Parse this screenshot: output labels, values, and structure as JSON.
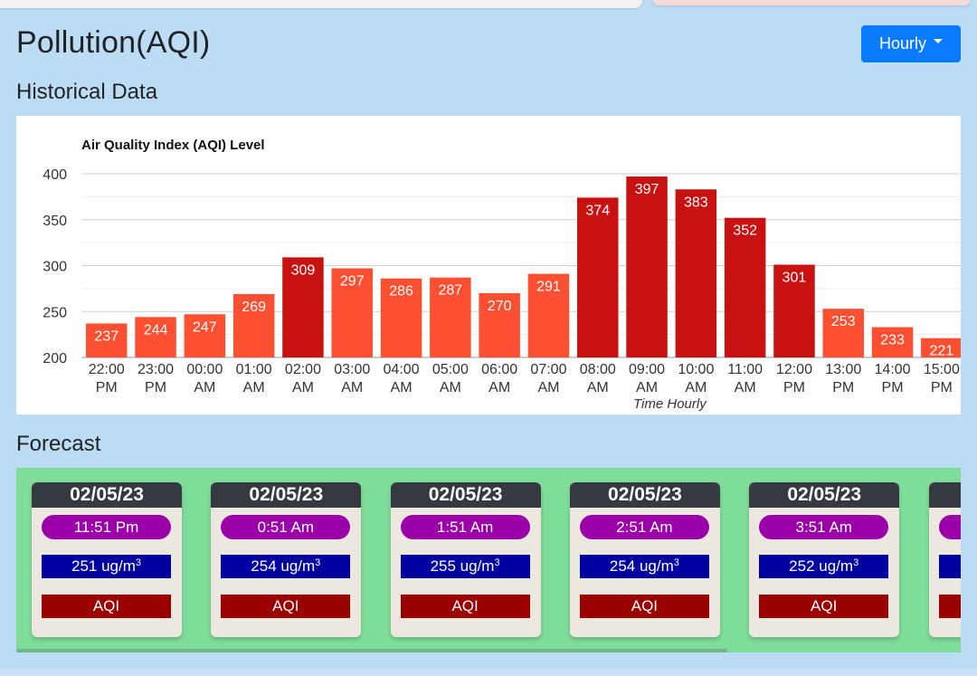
{
  "header": {
    "title": "Pollution(AQI)",
    "dropdown_label": "Hourly"
  },
  "sections": {
    "historical": "Historical Data",
    "forecast": "Forecast"
  },
  "colors": {
    "bar_normal": "#fd4f31",
    "bar_high": "#c81212",
    "button": "#0a7bff",
    "forecast_bg": "#7fdd9a",
    "time_pill": "#9b00a8",
    "pm_box": "#0000a0",
    "aqi_box": "#9a0000"
  },
  "chart_data": {
    "type": "bar",
    "title": "Air Quality Index (AQI) Level",
    "xlabel": "Time Hourly",
    "ylabel": "",
    "ylim": [
      200,
      400
    ],
    "yticks": [
      200,
      250,
      300,
      350,
      400
    ],
    "grid": true,
    "categories": [
      [
        "22:00",
        "PM"
      ],
      [
        "23:00",
        "PM"
      ],
      [
        "00:00",
        "AM"
      ],
      [
        "01:00",
        "AM"
      ],
      [
        "02:00",
        "AM"
      ],
      [
        "03:00",
        "AM"
      ],
      [
        "04:00",
        "AM"
      ],
      [
        "05:00",
        "AM"
      ],
      [
        "06:00",
        "AM"
      ],
      [
        "07:00",
        "AM"
      ],
      [
        "08:00",
        "AM"
      ],
      [
        "09:00",
        "AM"
      ],
      [
        "10:00",
        "AM"
      ],
      [
        "11:00",
        "AM"
      ],
      [
        "12:00",
        "PM"
      ],
      [
        "13:00",
        "PM"
      ],
      [
        "14:00",
        "PM"
      ],
      [
        "15:00",
        "PM"
      ]
    ],
    "values": [
      237,
      244,
      247,
      269,
      309,
      297,
      286,
      287,
      270,
      291,
      374,
      397,
      383,
      352,
      301,
      253,
      233,
      221
    ]
  },
  "forecast": [
    {
      "date": "02/05/23",
      "time": "11:51 Pm",
      "pm": "251 ug/m",
      "unit_sup": "3",
      "aqi": "AQI"
    },
    {
      "date": "02/05/23",
      "time": "0:51 Am",
      "pm": "254 ug/m",
      "unit_sup": "3",
      "aqi": "AQI"
    },
    {
      "date": "02/05/23",
      "time": "1:51 Am",
      "pm": "255 ug/m",
      "unit_sup": "3",
      "aqi": "AQI"
    },
    {
      "date": "02/05/23",
      "time": "2:51 Am",
      "pm": "254 ug/m",
      "unit_sup": "3",
      "aqi": "AQI"
    },
    {
      "date": "02/05/23",
      "time": "3:51 Am",
      "pm": "252 ug/m",
      "unit_sup": "3",
      "aqi": "AQI"
    }
  ]
}
